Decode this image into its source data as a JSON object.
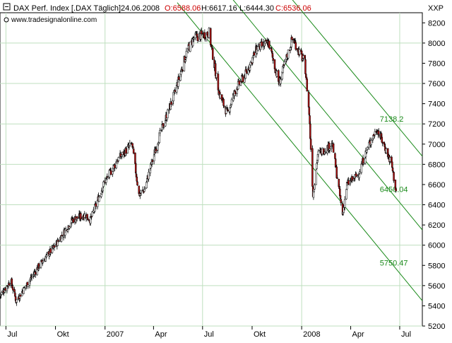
{
  "header": {
    "instrument": "DAX Perf. Index [.DAX  Täglich]",
    "date": "24.06.2008",
    "open": "O:6588.06",
    "high": "H:6617.16",
    "low": "L:6444.30",
    "close": "C:6536.06",
    "source": "www.tradesignalonline.com",
    "exchange": "XXP"
  },
  "colors": {
    "background": "#ffffff",
    "grid": "#bfdfbf",
    "channel": "#1a8a1a",
    "bull_candle": "#ffffff",
    "bear_candle": "#b01010",
    "ohl_red": "#cc0000",
    "axis_text": "#000000"
  },
  "chart_data": {
    "type": "candlestick",
    "title": "DAX Perf. Index [.DAX  Täglich]",
    "ylim": [
      5200,
      8300
    ],
    "y_ticks": [
      5200,
      5400,
      5600,
      5800,
      6000,
      6200,
      6400,
      6600,
      6800,
      7000,
      7200,
      7400,
      7600,
      7800,
      8000,
      8200
    ],
    "x_ticks": [
      "Jul",
      "Okt",
      "2007",
      "Apr",
      "Jul",
      "Okt",
      "2008",
      "Apr",
      "Jul"
    ],
    "x_tick_dates": [
      "2006-07-01",
      "2006-10-01",
      "2007-01-01",
      "2007-04-01",
      "2007-07-01",
      "2007-10-01",
      "2008-01-01",
      "2008-04-01",
      "2008-07-01"
    ],
    "x_range": [
      "2006-06-20",
      "2008-08-12"
    ],
    "grid": true,
    "close_path": [
      {
        "date": "2006-06-20",
        "value": 5500
      },
      {
        "date": "2006-07-10",
        "value": 5650
      },
      {
        "date": "2006-07-20",
        "value": 5450
      },
      {
        "date": "2006-08-10",
        "value": 5620
      },
      {
        "date": "2006-09-01",
        "value": 5800
      },
      {
        "date": "2006-10-01",
        "value": 6000
      },
      {
        "date": "2006-11-01",
        "value": 6250
      },
      {
        "date": "2006-11-25",
        "value": 6300
      },
      {
        "date": "2006-12-05",
        "value": 6250
      },
      {
        "date": "2006-12-29",
        "value": 6600
      },
      {
        "date": "2007-01-25",
        "value": 6850
      },
      {
        "date": "2007-02-20",
        "value": 7000
      },
      {
        "date": "2007-03-05",
        "value": 6500
      },
      {
        "date": "2007-03-15",
        "value": 6550
      },
      {
        "date": "2007-04-10",
        "value": 7050
      },
      {
        "date": "2007-05-10",
        "value": 7500
      },
      {
        "date": "2007-06-01",
        "value": 7900
      },
      {
        "date": "2007-06-15",
        "value": 8050
      },
      {
        "date": "2007-07-13",
        "value": 8100
      },
      {
        "date": "2007-08-01",
        "value": 7500
      },
      {
        "date": "2007-08-16",
        "value": 7300
      },
      {
        "date": "2007-09-01",
        "value": 7550
      },
      {
        "date": "2007-09-20",
        "value": 7700
      },
      {
        "date": "2007-10-10",
        "value": 7950
      },
      {
        "date": "2007-11-01",
        "value": 8000
      },
      {
        "date": "2007-11-20",
        "value": 7600
      },
      {
        "date": "2007-12-15",
        "value": 8050
      },
      {
        "date": "2008-01-07",
        "value": 7800
      },
      {
        "date": "2008-01-15",
        "value": 7300
      },
      {
        "date": "2008-01-22",
        "value": 6500
      },
      {
        "date": "2008-01-31",
        "value": 6900
      },
      {
        "date": "2008-02-27",
        "value": 7000
      },
      {
        "date": "2008-03-17",
        "value": 6300
      },
      {
        "date": "2008-03-25",
        "value": 6600
      },
      {
        "date": "2008-04-15",
        "value": 6700
      },
      {
        "date": "2008-05-05",
        "value": 7000
      },
      {
        "date": "2008-05-20",
        "value": 7150
      },
      {
        "date": "2008-06-05",
        "value": 6950
      },
      {
        "date": "2008-06-16",
        "value": 6800
      },
      {
        "date": "2008-06-24",
        "value": 6536
      }
    ],
    "channel_lines": [
      {
        "label": "7138.2",
        "from": {
          "date": "2007-05-15",
          "value": 9800
        },
        "to": {
          "date": "2008-08-12",
          "value": 6880
        }
      },
      {
        "label": "6450.04",
        "from": {
          "date": "2007-05-15",
          "value": 9100
        },
        "to": {
          "date": "2008-08-12",
          "value": 6150
        }
      },
      {
        "label": "5750.47",
        "from": {
          "date": "2007-05-15",
          "value": 8400
        },
        "to": {
          "date": "2008-08-12",
          "value": 5450
        }
      }
    ]
  }
}
